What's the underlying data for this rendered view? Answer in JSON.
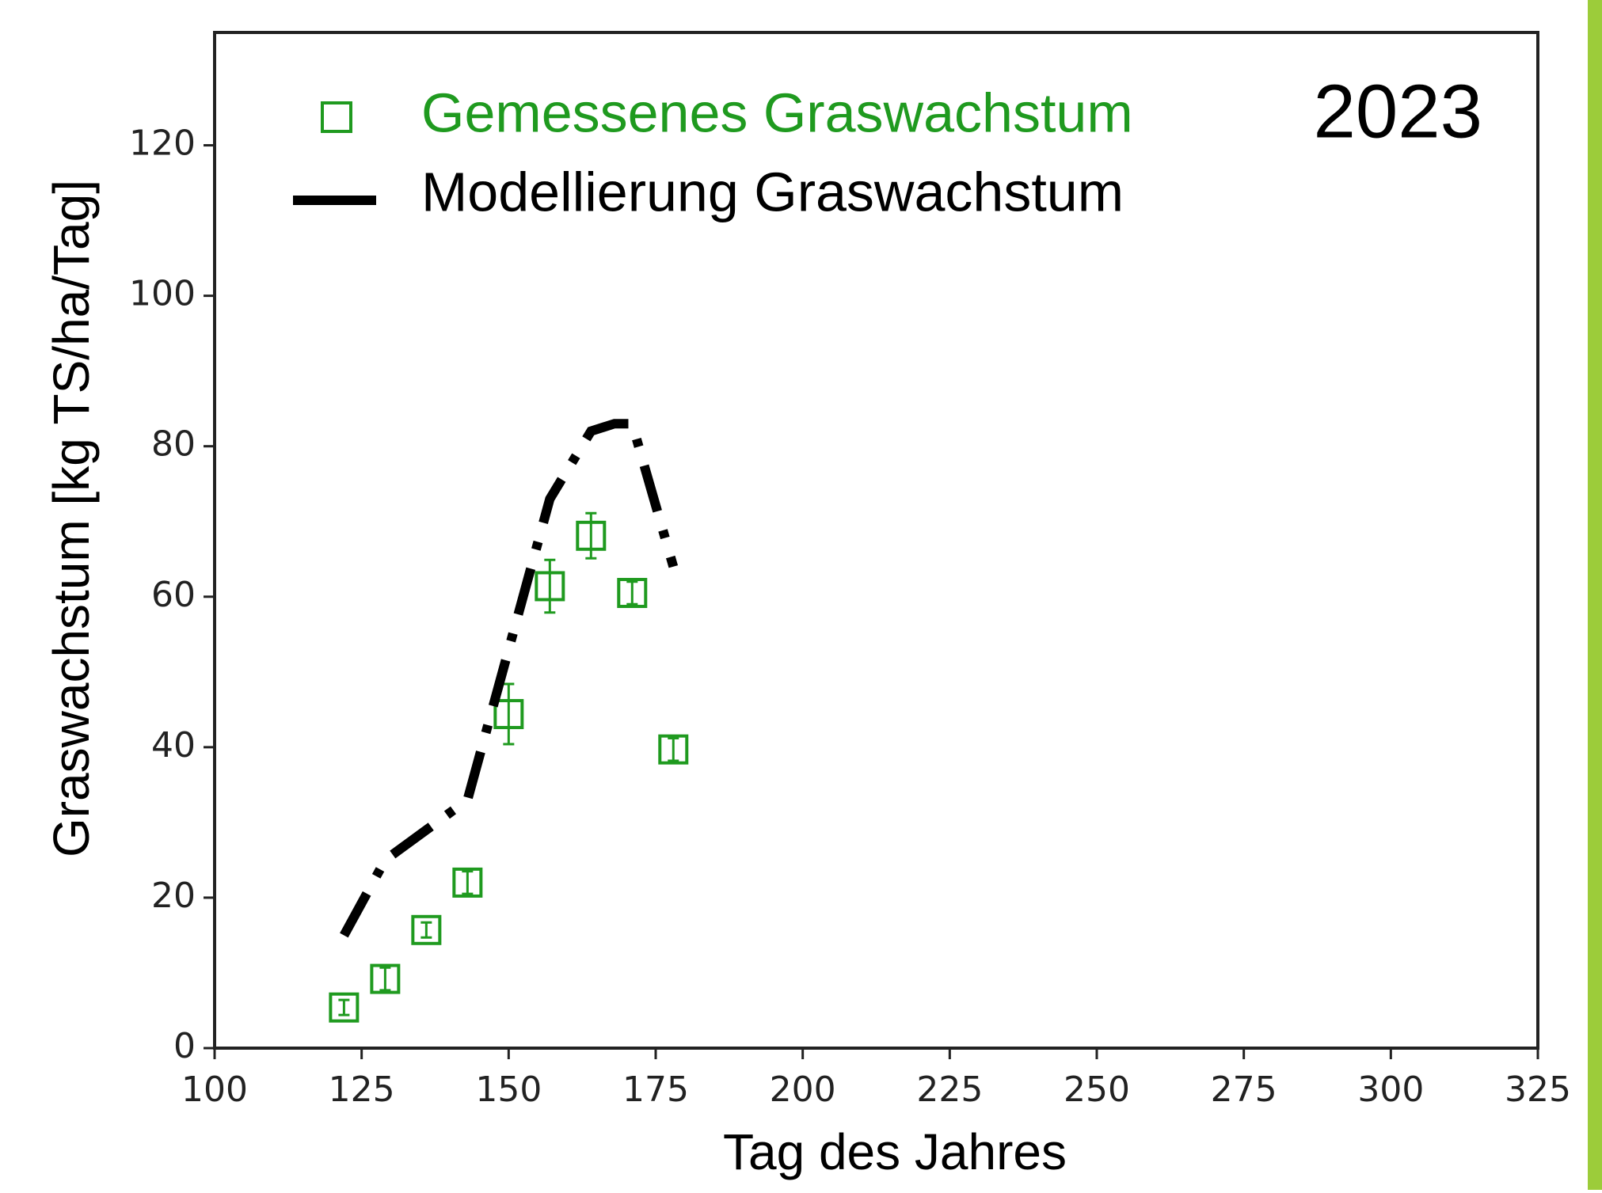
{
  "chart_data": {
    "type": "scatter",
    "x_label": "Tag des Jahres",
    "y_label": "Graswachstum [kg TS/ha/Tag]",
    "annotation": "2023",
    "xlim": [
      100,
      325
    ],
    "xticks": [
      100,
      125,
      150,
      175,
      200,
      225,
      250,
      275,
      300,
      325
    ],
    "ylim": [
      0,
      135
    ],
    "yticks": [
      0,
      20,
      40,
      60,
      80,
      100,
      120
    ],
    "grid": false,
    "legend": "upper left",
    "series": [
      {
        "name": "Gemessenes Graswachstum",
        "type": "scatter",
        "color": "#1f9a1f",
        "x": [
          122,
          129,
          136,
          143,
          150,
          157,
          164,
          171,
          178
        ],
        "values": [
          5.4,
          9.2,
          15.7,
          22,
          44.4,
          61.4,
          68.1,
          60.5,
          39.7
        ],
        "errors": [
          1,
          1.5,
          1,
          1.5,
          4,
          3.5,
          3,
          1.5,
          1.5
        ]
      },
      {
        "name": "Modellierung Graswachstum",
        "type": "line",
        "color": "#000000",
        "x": [
          122,
          129,
          136,
          143,
          150,
          157,
          164,
          168,
          171,
          178
        ],
        "values": [
          15,
          25,
          29,
          33,
          53,
          73,
          82,
          83,
          83,
          64
        ]
      }
    ]
  }
}
